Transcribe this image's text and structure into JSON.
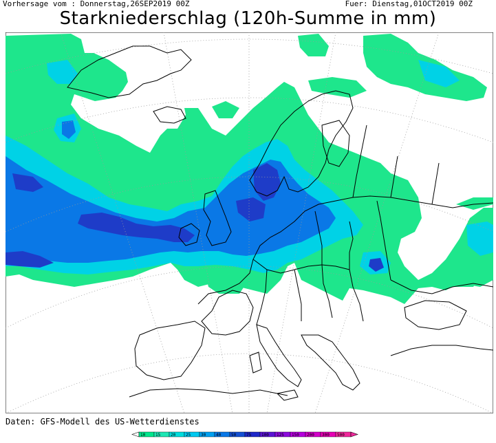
{
  "header": {
    "forecast_from": "Vorhersage vom : Donnerstag,26SEP2019 00Z",
    "valid_for": "Fuer: Dienstag,01OCT2019 00Z",
    "title": "Starkniederschlag (120h-Summe in mm)"
  },
  "footer": {
    "source": "Daten: GFS-Modell des US-Wetterdienstes"
  },
  "legend": {
    "unit": "mm",
    "classes": [
      {
        "label": "10",
        "color": "#00e68c"
      },
      {
        "label": "15",
        "color": "#1ee6b4"
      },
      {
        "label": "20",
        "color": "#00dcdc"
      },
      {
        "label": "25",
        "color": "#00c8f0"
      },
      {
        "label": "30",
        "color": "#00a0f0"
      },
      {
        "label": "40",
        "color": "#0a78e6"
      },
      {
        "label": "50",
        "color": "#1450d2"
      },
      {
        "label": "75",
        "color": "#1e28c8"
      },
      {
        "label": "100",
        "color": "#5a14d2"
      },
      {
        "label": "125",
        "color": "#8c0adc"
      },
      {
        "label": "150",
        "color": "#b400dc"
      },
      {
        "label": "200",
        "color": "#d200c8"
      },
      {
        "label": "300",
        "color": "#e600b4"
      },
      {
        "label": "500",
        "color": "#f0289b"
      }
    ]
  },
  "map": {
    "region": "Europe",
    "colors": {
      "light": "#1ee68c",
      "mid": "#00d2e6",
      "cyan": "#00b4f0",
      "blue": "#0a78e6",
      "dark": "#1e3cc8",
      "deep": "#2832c8",
      "border": "#000000",
      "graticule": "#9a9a9a"
    }
  }
}
